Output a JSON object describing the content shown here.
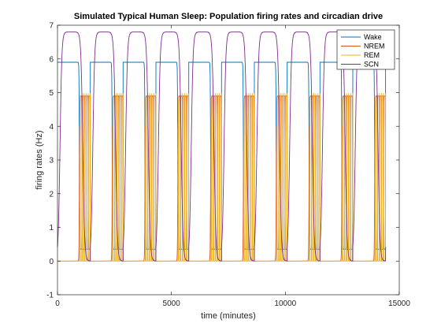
{
  "chart_data": {
    "type": "line",
    "title": "Simulated Typical Human Sleep: Population firing rates and circadian drive",
    "xlabel": "time (minutes)",
    "ylabel": "firing rates (Hz)",
    "xlim": [
      0,
      15000
    ],
    "ylim": [
      -1,
      7
    ],
    "xticks": [
      0,
      5000,
      10000,
      15000
    ],
    "xtick_labels": [
      "0",
      "5000",
      "10000",
      "15000"
    ],
    "yticks": [
      -1,
      0,
      1,
      2,
      3,
      4,
      5,
      6,
      7
    ],
    "ytick_labels": [
      "-1",
      "0",
      "1",
      "2",
      "3",
      "4",
      "5",
      "6",
      "7"
    ],
    "grid": false,
    "legend_position": "top-right",
    "simulation_end": 14400,
    "period": 1440,
    "series": [
      {
        "name": "Wake",
        "color": "#0072BD",
        "description": "Plateau near 5.9 Hz during wake (~16 h per day), dips toward ~0.4 Hz with brief bursts during sleep",
        "daily_pattern": {
          "high_value": 5.9,
          "low_value": 0.35,
          "high_start": 0,
          "high_end": 960
        }
      },
      {
        "name": "NREM",
        "color": "#D95319",
        "description": "Near 0 during wake, rises to ~4.9 Hz during sleep",
        "daily_pattern": {
          "high_value": 4.9,
          "low_value": 0.0,
          "high_start": 960,
          "high_end": 1440
        }
      },
      {
        "name": "REM",
        "color": "#EDB120",
        "description": "Rapid oscillations 0–5 Hz during sleep, ~0 during wake",
        "daily_pattern": {
          "high_value": 5.0,
          "low_value": 0.0,
          "high_start": 960,
          "high_end": 1440
        }
      },
      {
        "name": "SCN",
        "color": "#7E2F8E",
        "description": "Circadian drive: peaks at ~6.8 Hz, troughs near 0, period ~1440 minutes",
        "daily_pattern": {
          "peak_value": 6.8,
          "trough_value": 0.0,
          "peak_time": 780
        }
      }
    ]
  }
}
